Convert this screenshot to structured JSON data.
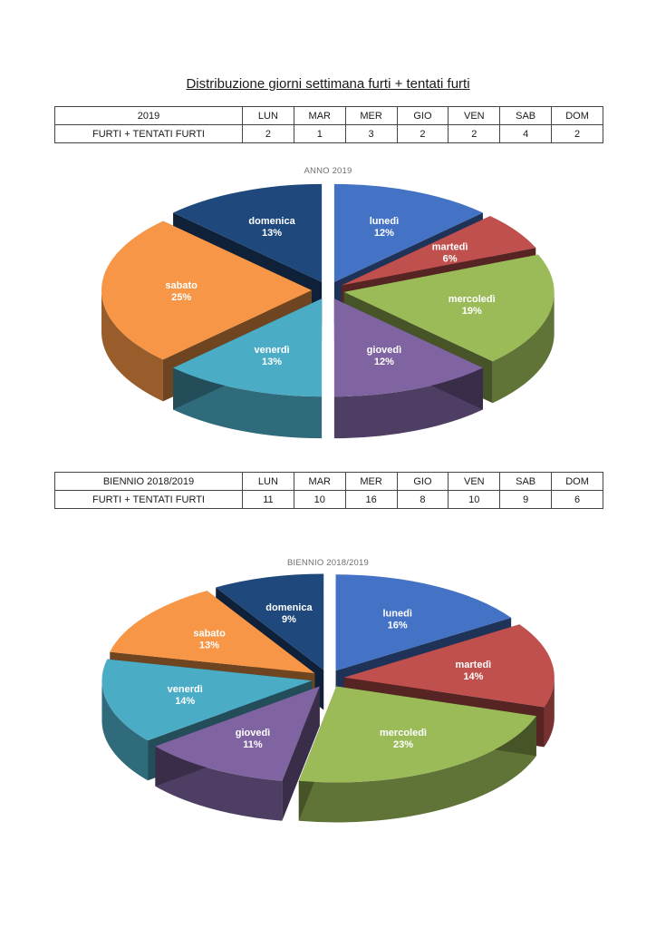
{
  "title": "Distribuzione giorni settimana furti + tentati furti",
  "tables": [
    {
      "header": [
        "2019",
        "LUN",
        "MAR",
        "MER",
        "GIO",
        "VEN",
        "SAB",
        "DOM"
      ],
      "row": [
        "FURTI + TENTATI FURTI",
        "2",
        "1",
        "3",
        "2",
        "2",
        "4",
        "2"
      ]
    },
    {
      "header": [
        "BIENNIO 2018/2019",
        "LUN",
        "MAR",
        "MER",
        "GIO",
        "VEN",
        "SAB",
        "DOM"
      ],
      "row": [
        "FURTI + TENTATI FURTI",
        "11",
        "10",
        "16",
        "8",
        "10",
        "9",
        "6"
      ]
    }
  ],
  "chart_data": [
    {
      "type": "pie",
      "title": "ANNO 2019",
      "categories": [
        "lunedì",
        "martedì",
        "mercoledì",
        "giovedì",
        "venerdì",
        "sabato",
        "domenica"
      ],
      "values": [
        2,
        1,
        3,
        2,
        2,
        4,
        2
      ],
      "percent_labels": [
        "12%",
        "6%",
        "19%",
        "12%",
        "13%",
        "25%",
        "13%"
      ],
      "colors": [
        "#4472C4",
        "#C0504D",
        "#9BBB59",
        "#8064A2",
        "#4BACC6",
        "#F79646",
        "#1F497D"
      ],
      "exploded": true,
      "style": "3d"
    },
    {
      "type": "pie",
      "title": "BIENNIO 2018/2019",
      "categories": [
        "lunedì",
        "martedì",
        "mercoledì",
        "giovedì",
        "venerdì",
        "sabato",
        "domenica"
      ],
      "values": [
        11,
        10,
        16,
        8,
        10,
        9,
        6
      ],
      "percent_labels": [
        "16%",
        "14%",
        "23%",
        "11%",
        "14%",
        "13%",
        "9%"
      ],
      "colors": [
        "#4472C4",
        "#C0504D",
        "#9BBB59",
        "#8064A2",
        "#4BACC6",
        "#F79646",
        "#1F497D"
      ],
      "exploded": true,
      "style": "3d"
    }
  ]
}
